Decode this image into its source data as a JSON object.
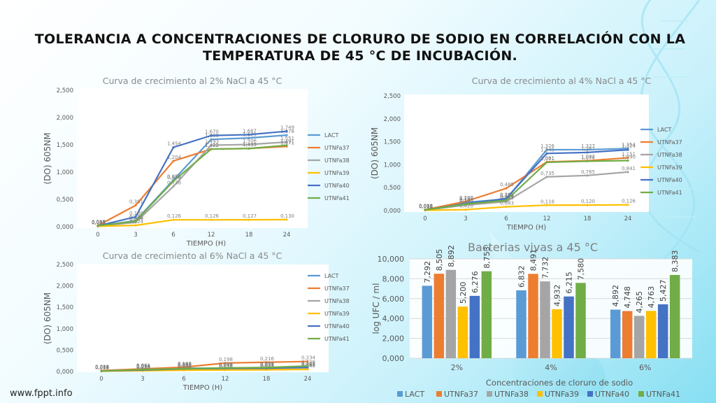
{
  "slide": {
    "title_line1": "TOLERANCIA A CONCENTRACIONES DE CLORURO DE SODIO EN CORRELACIÓN CON LA",
    "title_line2": "TEMPERATURA DE 45 °C DE INCUBACIÓN.",
    "footer_url": "www.fppt.info"
  },
  "colors": {
    "LACT": "#5b9bd5",
    "UTNFa37": "#ed7d31",
    "UTNFa38": "#a5a5a5",
    "UTNFa39": "#ffc000",
    "UTNFa40": "#4472c4",
    "UTNFa41": "#70ad47",
    "title_text": "#8a8a8a",
    "axis_text": "#595959",
    "grid": "#d9d9d9"
  },
  "chart_data": [
    {
      "type": "line",
      "title": "Curva de crecimiento al 2% NaCl a 45 °C",
      "xlabel": "TIEMPO (H)",
      "ylabel": "(DO) 605NM",
      "x": [
        "0",
        "3",
        "6",
        "12",
        "18",
        "24"
      ],
      "yticks": [
        "0,000",
        "0,500",
        "1,000",
        "1,500",
        "2,000",
        "2,500"
      ],
      "ylim": [
        0,
        2.5
      ],
      "grid": false,
      "legend": "right",
      "series": [
        {
          "name": "LACT",
          "values": [
            0.011,
            0.111,
            0.855,
            1.6,
            1.625,
            1.678
          ]
        },
        {
          "name": "UTNFa37",
          "values": [
            0.021,
            0.391,
            1.204,
            1.422,
            1.433,
            1.471
          ]
        },
        {
          "name": "UTNFa38",
          "values": [
            0.009,
            0.08,
            0.738,
            1.493,
            1.506,
            1.551
          ]
        },
        {
          "name": "UTNFa39",
          "values": [
            0.007,
            0.024,
            0.126,
            0.126,
            0.127,
            0.13
          ]
        },
        {
          "name": "UTNFa40",
          "values": [
            0.015,
            0.18,
            1.454,
            1.67,
            1.687,
            1.749
          ]
        },
        {
          "name": "UTNFa41",
          "values": [
            0.017,
            0.1,
            0.836,
            1.422,
            1.433,
            1.491
          ]
        }
      ],
      "labels": [
        [
          "0,011",
          "0,111",
          "0,855",
          "1,600",
          "1,625",
          "1,678"
        ],
        [
          "0,021",
          "0,391",
          "1,204",
          "1,422",
          "1,433",
          "1,471"
        ],
        [
          "0,009",
          "0,080",
          "0,738",
          "1,493",
          "1,506",
          "1,551"
        ],
        [
          "0,007",
          "0,024",
          "0,126",
          "0,126",
          "0,127",
          "0,130"
        ],
        [
          "0,015",
          "0,180",
          "1,454",
          "1,670",
          "1,687",
          "1,749"
        ],
        [
          "0,017",
          "0,100",
          "0,836",
          "1,422",
          "1,433",
          "1,491"
        ]
      ]
    },
    {
      "type": "line",
      "title": "Curva de crecimiento al 4% NaCl a 45 °C",
      "xlabel": "TIEMPO (H)",
      "ylabel": "(DO) 605NM",
      "x": [
        "0",
        "3",
        "6",
        "12",
        "18",
        "24"
      ],
      "yticks": [
        "0,000",
        "0,500",
        "1,000",
        "1,500",
        "2,000",
        "2,500"
      ],
      "ylim": [
        0,
        2.5
      ],
      "grid": false,
      "legend": "right",
      "series": [
        {
          "name": "LACT",
          "values": [
            0.012,
            0.18,
            0.25,
            1.326,
            1.327,
            1.354
          ]
        },
        {
          "name": "UTNFa37",
          "values": [
            0.02,
            0.2,
            0.485,
            1.061,
            1.087,
            1.151
          ]
        },
        {
          "name": "UTNFa38",
          "values": [
            0.01,
            0.12,
            0.195,
            0.735,
            0.765,
            0.841
          ]
        },
        {
          "name": "UTNFa39",
          "values": [
            0.008,
            0.02,
            0.083,
            0.118,
            0.12,
            0.126
          ]
        },
        {
          "name": "UTNFa40",
          "values": [
            0.015,
            0.15,
            0.263,
            1.245,
            1.267,
            1.324
          ]
        },
        {
          "name": "UTNFa41",
          "values": [
            0.016,
            0.14,
            0.223,
            1.051,
            1.076,
            1.09
          ]
        }
      ],
      "labels": [
        [
          "0,012",
          "0,180",
          "0,250",
          "1,326",
          "1,327",
          "1,354"
        ],
        [
          "0,020",
          "0,200",
          "0,485",
          "1,061",
          "1,087",
          "1,151"
        ],
        [
          "0,010",
          "0,120",
          "0,195",
          "0,735",
          "0,765",
          "0,841"
        ],
        [
          "0,008",
          "0,020",
          "0,083",
          "0,118",
          "0,120",
          "0,126"
        ],
        [
          "0,015",
          "0,150",
          "0,263",
          "1,245",
          "1,267",
          "1,324"
        ],
        [
          "0,016",
          "0,140",
          "0,223",
          "1,051",
          "1,076",
          "1,090"
        ]
      ]
    },
    {
      "type": "line",
      "title": "Curva de crecimiento al 6% NaCl a 45 °C",
      "xlabel": "TIEMPO (H)",
      "ylabel": "(DO) 605NM",
      "x": [
        "0",
        "3",
        "6",
        "12",
        "18",
        "24"
      ],
      "yticks": [
        "0,000",
        "0,500",
        "1,000",
        "1,500",
        "2,000",
        "2,500"
      ],
      "ylim": [
        0,
        2.5
      ],
      "grid": false,
      "legend": "right",
      "series": [
        {
          "name": "LACT",
          "values": [
            0.012,
            0.03,
            0.08,
            0.07,
            0.071,
            0.085
          ]
        },
        {
          "name": "UTNFa37",
          "values": [
            0.022,
            0.061,
            0.102,
            0.198,
            0.216,
            0.234
          ]
        },
        {
          "name": "UTNFa38",
          "values": [
            0.01,
            0.025,
            0.04,
            0.051,
            0.054,
            0.06
          ]
        },
        {
          "name": "UTNFa39",
          "values": [
            0.008,
            0.018,
            0.03,
            0.036,
            0.041,
            0.049
          ]
        },
        {
          "name": "UTNFa40",
          "values": [
            0.011,
            0.034,
            0.063,
            0.076,
            0.078,
            0.101
          ]
        },
        {
          "name": "UTNFa41",
          "values": [
            0.013,
            0.044,
            0.068,
            0.085,
            0.094,
            0.129
          ]
        }
      ],
      "labels": [
        [
          "0,012",
          "0,030",
          "0,080",
          "0,070",
          "0,071",
          "0,085"
        ],
        [
          "0,022",
          "0,061",
          "0,102",
          "0,198",
          "0,216",
          "0,234"
        ],
        [
          "0,010",
          "0,025",
          "0,040",
          "0,051",
          "0,054",
          "0,060"
        ],
        [
          "0,008",
          "0,018",
          "0,030",
          "0,036",
          "0,041",
          "0,049"
        ],
        [
          "0,011",
          "0,034",
          "0,063",
          "0,076",
          "0,078",
          "0,101"
        ],
        [
          "0,013",
          "0,044",
          "0,068",
          "0,085",
          "0,094",
          "0,129"
        ]
      ]
    },
    {
      "type": "bar",
      "title": "Bacterias vivas a 45 °C",
      "xlabel": "Concentraciones de cloruro de sodio",
      "ylabel": "log UFC / ml",
      "categories": [
        "2%",
        "4%",
        "6%"
      ],
      "yticks": [
        "0,000",
        "2,000",
        "4,000",
        "6,000",
        "8,000",
        "10,000"
      ],
      "ylim": [
        0,
        10
      ],
      "grid": true,
      "legend": "bottom",
      "series": [
        {
          "name": "LACT",
          "values": [
            7.292,
            6.832,
            4.892
          ]
        },
        {
          "name": "UTNFa37",
          "values": [
            8.505,
            8.491,
            4.748
          ]
        },
        {
          "name": "UTNFa38",
          "values": [
            8.892,
            7.732,
            4.265
          ]
        },
        {
          "name": "UTNFa39",
          "values": [
            5.2,
            4.932,
            4.763
          ]
        },
        {
          "name": "UTNFa40",
          "values": [
            6.276,
            6.215,
            5.427
          ]
        },
        {
          "name": "UTNFa41",
          "values": [
            8.753,
            7.58,
            8.383
          ]
        }
      ],
      "labels": [
        [
          "7,292",
          "6,832",
          "4,892"
        ],
        [
          "8,505",
          "8,491",
          "4,748"
        ],
        [
          "8,892",
          "7,732",
          "4,265"
        ],
        [
          "5,200",
          "4,932",
          "4,763"
        ],
        [
          "6,276",
          "6,215",
          "5,427"
        ],
        [
          "8,753",
          "7,580",
          "8,383"
        ]
      ]
    }
  ]
}
